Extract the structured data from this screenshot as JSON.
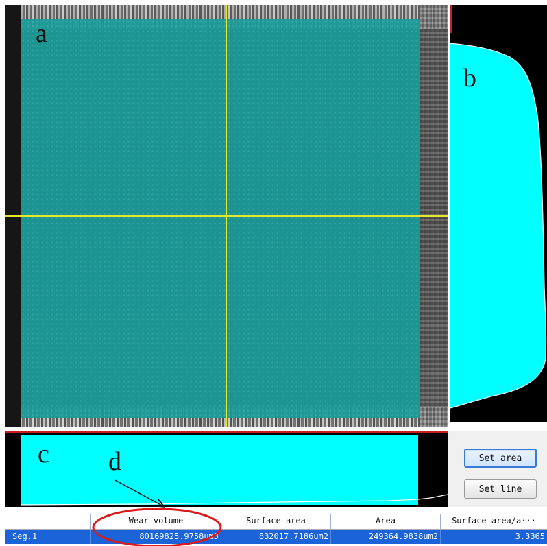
{
  "figure_labels": {
    "a": "a",
    "b": "b",
    "c": "c",
    "d": "d"
  },
  "colors": {
    "selection": "#1a9c9a",
    "profile_fill": "#00ffff",
    "crosshair": "#e8e82a",
    "annotation": "#dd1a1a",
    "row_highlight": "#1a63d8"
  },
  "buttons": {
    "set_area": "Set area",
    "set_line": "Set line"
  },
  "table": {
    "headers": [
      "",
      "Wear volume",
      "Surface area",
      "Area",
      "Surface area/a···"
    ],
    "rows": [
      [
        "Seg.1",
        "80169825.9758um3",
        "832017.7186um2",
        "249364.9838um2",
        "3.3365"
      ]
    ]
  }
}
